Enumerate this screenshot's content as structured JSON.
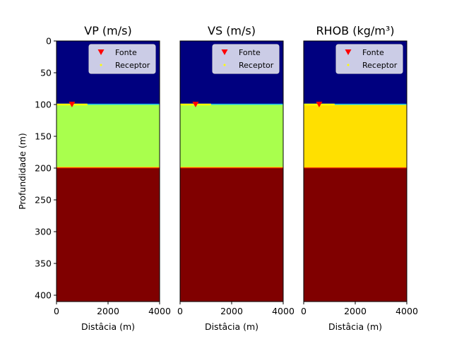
{
  "chart_data": [
    {
      "type": "heatmap",
      "title": "VP (m/s)",
      "xlabel": "Distâcia (m)",
      "ylabel": "Profundidade (m)",
      "xlim": [
        0,
        4000
      ],
      "ylim": [
        410,
        0
      ],
      "x_ticks": [
        "0",
        "2000",
        "4000"
      ],
      "y_ticks": [
        "0",
        "50",
        "100",
        "150",
        "200",
        "250",
        "300",
        "350",
        "400"
      ],
      "colormap": "jet",
      "layers": [
        {
          "top": 0,
          "bottom": 100,
          "color": "#00007f"
        },
        {
          "top": 100,
          "bottom": 200,
          "color": "#a9ff4d"
        },
        {
          "top": 200,
          "bottom": 410,
          "color": "#800000"
        }
      ],
      "source": {
        "x": 600,
        "depth": 100
      },
      "receivers": {
        "x_start": 0,
        "x_end": 1200,
        "depth": 100
      },
      "legend": {
        "position": "top-right",
        "entries": [
          "Fonte",
          "Receptor"
        ]
      }
    },
    {
      "type": "heatmap",
      "title": "VS (m/s)",
      "xlabel": "Distâcia (m)",
      "ylabel": "",
      "xlim": [
        0,
        4000
      ],
      "ylim": [
        410,
        0
      ],
      "x_ticks": [
        "0",
        "2000",
        "4000"
      ],
      "y_ticks": [],
      "colormap": "jet",
      "layers": [
        {
          "top": 0,
          "bottom": 100,
          "color": "#00007f"
        },
        {
          "top": 100,
          "bottom": 200,
          "color": "#a9ff4d"
        },
        {
          "top": 200,
          "bottom": 410,
          "color": "#800000"
        }
      ],
      "source": {
        "x": 600,
        "depth": 100
      },
      "receivers": {
        "x_start": 0,
        "x_end": 1200,
        "depth": 100
      },
      "legend": {
        "position": "top-right",
        "entries": [
          "Fonte",
          "Receptor"
        ]
      }
    },
    {
      "type": "heatmap",
      "title": "RHOB (kg/m³)",
      "xlabel": "Distâcia (m)",
      "ylabel": "",
      "xlim": [
        0,
        4000
      ],
      "ylim": [
        410,
        0
      ],
      "x_ticks": [
        "0",
        "2000",
        "4000"
      ],
      "y_ticks": [],
      "colormap": "jet",
      "layers": [
        {
          "top": 0,
          "bottom": 100,
          "color": "#00007f"
        },
        {
          "top": 100,
          "bottom": 200,
          "color": "#ffe000"
        },
        {
          "top": 200,
          "bottom": 410,
          "color": "#800000"
        }
      ],
      "source": {
        "x": 600,
        "depth": 100
      },
      "receivers": {
        "x_start": 0,
        "x_end": 1200,
        "depth": 100
      },
      "legend": {
        "position": "top-right",
        "entries": [
          "Fonte",
          "Receptor"
        ]
      }
    }
  ]
}
